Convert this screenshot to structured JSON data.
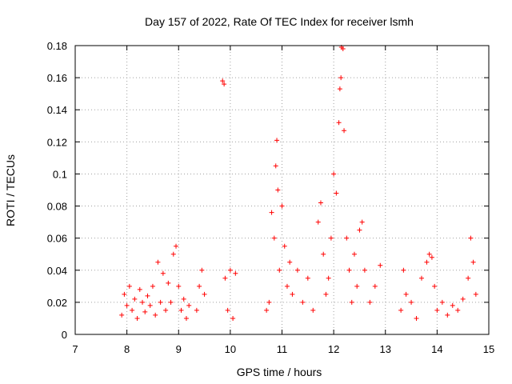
{
  "chart_data": {
    "type": "scatter",
    "title": "Day 157 of 2022, Rate Of TEC Index for receiver lsmh",
    "xlabel": "GPS time / hours",
    "ylabel": "ROTI / TECUs",
    "xlim": [
      7,
      15
    ],
    "ylim": [
      0,
      0.18
    ],
    "grid": true,
    "xticks": [
      "7",
      "8",
      "9",
      "10",
      "11",
      "12",
      "13",
      "14",
      "15"
    ],
    "yticks": [
      "0",
      "0.02",
      "0.04",
      "0.06",
      "0.08",
      "0.1",
      "0.12",
      "0.14",
      "0.16",
      "0.18"
    ],
    "marker": "+",
    "marker_color": "#ff0000",
    "series": [
      {
        "name": "ROTI",
        "points": [
          [
            7.9,
            0.012
          ],
          [
            7.95,
            0.025
          ],
          [
            8.0,
            0.018
          ],
          [
            8.05,
            0.03
          ],
          [
            8.1,
            0.015
          ],
          [
            8.15,
            0.022
          ],
          [
            8.2,
            0.01
          ],
          [
            8.25,
            0.028
          ],
          [
            8.3,
            0.02
          ],
          [
            8.35,
            0.014
          ],
          [
            8.4,
            0.024
          ],
          [
            8.45,
            0.018
          ],
          [
            8.5,
            0.03
          ],
          [
            8.55,
            0.012
          ],
          [
            8.6,
            0.045
          ],
          [
            8.65,
            0.02
          ],
          [
            8.7,
            0.038
          ],
          [
            8.75,
            0.015
          ],
          [
            8.8,
            0.032
          ],
          [
            8.85,
            0.02
          ],
          [
            8.9,
            0.05
          ],
          [
            8.95,
            0.055
          ],
          [
            9.0,
            0.03
          ],
          [
            9.05,
            0.015
          ],
          [
            9.1,
            0.022
          ],
          [
            9.15,
            0.01
          ],
          [
            9.2,
            0.018
          ],
          [
            9.35,
            0.015
          ],
          [
            9.4,
            0.03
          ],
          [
            9.45,
            0.04
          ],
          [
            9.5,
            0.025
          ],
          [
            9.85,
            0.158
          ],
          [
            9.88,
            0.156
          ],
          [
            9.9,
            0.035
          ],
          [
            9.95,
            0.015
          ],
          [
            10.0,
            0.04
          ],
          [
            10.05,
            0.01
          ],
          [
            10.1,
            0.038
          ],
          [
            10.7,
            0.015
          ],
          [
            10.75,
            0.02
          ],
          [
            10.8,
            0.076
          ],
          [
            10.85,
            0.06
          ],
          [
            10.88,
            0.105
          ],
          [
            10.9,
            0.121
          ],
          [
            10.92,
            0.09
          ],
          [
            10.95,
            0.04
          ],
          [
            11.0,
            0.08
          ],
          [
            11.05,
            0.055
          ],
          [
            11.1,
            0.03
          ],
          [
            11.15,
            0.045
          ],
          [
            11.2,
            0.025
          ],
          [
            11.3,
            0.04
          ],
          [
            11.4,
            0.02
          ],
          [
            11.5,
            0.035
          ],
          [
            11.6,
            0.015
          ],
          [
            11.7,
            0.07
          ],
          [
            11.75,
            0.082
          ],
          [
            11.8,
            0.05
          ],
          [
            11.85,
            0.025
          ],
          [
            11.9,
            0.035
          ],
          [
            11.95,
            0.06
          ],
          [
            12.0,
            0.1
          ],
          [
            12.05,
            0.088
          ],
          [
            12.1,
            0.132
          ],
          [
            12.12,
            0.153
          ],
          [
            12.14,
            0.16
          ],
          [
            12.15,
            0.179
          ],
          [
            12.18,
            0.178
          ],
          [
            12.2,
            0.127
          ],
          [
            12.25,
            0.06
          ],
          [
            12.3,
            0.04
          ],
          [
            12.35,
            0.02
          ],
          [
            12.4,
            0.05
          ],
          [
            12.45,
            0.03
          ],
          [
            12.5,
            0.065
          ],
          [
            12.55,
            0.07
          ],
          [
            12.6,
            0.04
          ],
          [
            12.7,
            0.02
          ],
          [
            12.8,
            0.03
          ],
          [
            12.9,
            0.043
          ],
          [
            13.3,
            0.015
          ],
          [
            13.35,
            0.04
          ],
          [
            13.4,
            0.025
          ],
          [
            13.5,
            0.02
          ],
          [
            13.6,
            0.01
          ],
          [
            13.7,
            0.035
          ],
          [
            13.8,
            0.045
          ],
          [
            13.85,
            0.05
          ],
          [
            13.9,
            0.048
          ],
          [
            13.95,
            0.03
          ],
          [
            14.0,
            0.015
          ],
          [
            14.1,
            0.02
          ],
          [
            14.2,
            0.012
          ],
          [
            14.3,
            0.018
          ],
          [
            14.4,
            0.015
          ],
          [
            14.5,
            0.022
          ],
          [
            14.6,
            0.035
          ],
          [
            14.65,
            0.06
          ],
          [
            14.7,
            0.045
          ],
          [
            14.75,
            0.025
          ]
        ]
      }
    ]
  }
}
